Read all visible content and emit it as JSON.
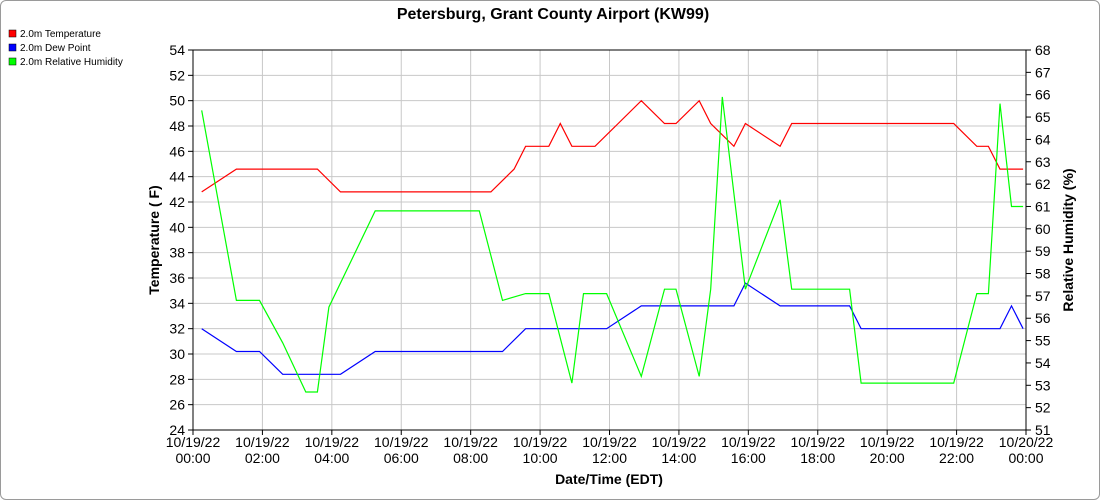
{
  "chart_data": {
    "type": "line",
    "title": "Petersburg, Grant County Airport (KW99)",
    "xlabel": "Date/Time (EDT)",
    "ylabel": "Temperature ( F)",
    "y2label": "Relative Humidity (%)",
    "x_ticks": [
      {
        "date": "10/19/22",
        "time": "00:00"
      },
      {
        "date": "10/19/22",
        "time": "02:00"
      },
      {
        "date": "10/19/22",
        "time": "04:00"
      },
      {
        "date": "10/19/22",
        "time": "06:00"
      },
      {
        "date": "10/19/22",
        "time": "08:00"
      },
      {
        "date": "10/19/22",
        "time": "10:00"
      },
      {
        "date": "10/19/22",
        "time": "12:00"
      },
      {
        "date": "10/19/22",
        "time": "14:00"
      },
      {
        "date": "10/19/22",
        "time": "16:00"
      },
      {
        "date": "10/19/22",
        "time": "18:00"
      },
      {
        "date": "10/19/22",
        "time": "20:00"
      },
      {
        "date": "10/19/22",
        "time": "22:00"
      },
      {
        "date": "10/20/22",
        "time": "00:00"
      }
    ],
    "xlim": [
      "10/19/22 00:00",
      "10/20/22 00:00"
    ],
    "ylim": [
      24,
      54
    ],
    "yticks": [
      24,
      26,
      28,
      30,
      32,
      34,
      36,
      38,
      40,
      42,
      44,
      46,
      48,
      50,
      52,
      54
    ],
    "y2lim": [
      51,
      68
    ],
    "y2ticks": [
      51,
      52,
      53,
      54,
      55,
      56,
      57,
      58,
      59,
      60,
      61,
      62,
      63,
      64,
      65,
      66,
      67,
      68
    ],
    "grid": true,
    "legend_position": "top-left",
    "series": [
      {
        "name": "2.0m Temperature",
        "color": "#ff0000",
        "axis": "left",
        "x": [
          "10/19/22 00:15",
          "10/19/22 01:15",
          "10/19/22 02:15",
          "10/19/22 03:15",
          "10/19/22 03:35",
          "10/19/22 04:15",
          "10/19/22 05:15",
          "10/19/22 06:15",
          "10/19/22 07:15",
          "10/19/22 08:15",
          "10/19/22 08:35",
          "10/19/22 09:15",
          "10/19/22 09:35",
          "10/19/22 10:15",
          "10/19/22 10:35",
          "10/19/22 10:55",
          "10/19/22 11:15",
          "10/19/22 11:35",
          "10/19/22 12:15",
          "10/19/22 12:55",
          "10/19/22 13:35",
          "10/19/22 13:55",
          "10/19/22 14:35",
          "10/19/22 14:55",
          "10/19/22 15:35",
          "10/19/22 15:55",
          "10/19/22 16:55",
          "10/19/22 17:15",
          "10/19/22 17:35",
          "10/19/22 18:15",
          "10/19/22 19:15",
          "10/19/22 20:15",
          "10/19/22 21:15",
          "10/19/22 21:55",
          "10/19/22 22:35",
          "10/19/22 22:55",
          "10/19/22 23:15",
          "10/19/22 23:35",
          "10/19/22 23:55"
        ],
        "y": [
          42.8,
          44.6,
          44.6,
          44.6,
          44.6,
          42.8,
          42.8,
          42.8,
          42.8,
          42.8,
          42.8,
          44.6,
          46.4,
          46.4,
          48.2,
          46.4,
          46.4,
          46.4,
          48.2,
          50.0,
          48.2,
          48.2,
          50.0,
          48.2,
          46.4,
          48.2,
          46.4,
          48.2,
          48.2,
          48.2,
          48.2,
          48.2,
          48.2,
          48.2,
          46.4,
          46.4,
          44.6,
          44.6,
          44.6
        ]
      },
      {
        "name": "2.0m Dew Point",
        "color": "#0000ff",
        "axis": "left",
        "x": [
          "10/19/22 00:15",
          "10/19/22 01:15",
          "10/19/22 01:55",
          "10/19/22 02:35",
          "10/19/22 03:15",
          "10/19/22 03:55",
          "10/19/22 04:15",
          "10/19/22 05:15",
          "10/19/22 06:15",
          "10/19/22 07:15",
          "10/19/22 08:15",
          "10/19/22 08:55",
          "10/19/22 09:35",
          "10/19/22 10:15",
          "10/19/22 11:15",
          "10/19/22 11:55",
          "10/19/22 12:55",
          "10/19/22 13:35",
          "10/19/22 14:15",
          "10/19/22 14:55",
          "10/19/22 15:35",
          "10/19/22 15:55",
          "10/19/22 16:55",
          "10/19/22 17:55",
          "10/19/22 18:55",
          "10/19/22 19:15",
          "10/19/22 20:15",
          "10/19/22 21:15",
          "10/19/22 22:15",
          "10/19/22 23:15",
          "10/19/22 23:35",
          "10/19/22 23:55"
        ],
        "y": [
          32.0,
          30.2,
          30.2,
          28.4,
          28.4,
          28.4,
          28.4,
          30.2,
          30.2,
          30.2,
          30.2,
          30.2,
          32.0,
          32.0,
          32.0,
          32.0,
          33.8,
          33.8,
          33.8,
          33.8,
          33.8,
          35.6,
          33.8,
          33.8,
          33.8,
          32.0,
          32.0,
          32.0,
          32.0,
          32.0,
          33.8,
          32.0
        ]
      },
      {
        "name": "2.0m Relative Humidity",
        "color": "#00ff00",
        "axis": "right",
        "x": [
          "10/19/22 00:15",
          "10/19/22 01:15",
          "10/19/22 01:55",
          "10/19/22 02:35",
          "10/19/22 03:15",
          "10/19/22 03:35",
          "10/19/22 03:55",
          "10/19/22 05:15",
          "10/19/22 06:15",
          "10/19/22 07:15",
          "10/19/22 08:15",
          "10/19/22 08:55",
          "10/19/22 09:35",
          "10/19/22 10:15",
          "10/19/22 10:55",
          "10/19/22 11:15",
          "10/19/22 11:55",
          "10/19/22 12:55",
          "10/19/22 13:35",
          "10/19/22 13:55",
          "10/19/22 14:35",
          "10/19/22 14:55",
          "10/19/22 15:15",
          "10/19/22 15:55",
          "10/19/22 16:55",
          "10/19/22 17:15",
          "10/19/22 18:15",
          "10/19/22 18:55",
          "10/19/22 19:15",
          "10/19/22 20:15",
          "10/19/22 21:15",
          "10/19/22 21:55",
          "10/19/22 22:35",
          "10/19/22 22:55",
          "10/19/22 23:15",
          "10/19/22 23:35",
          "10/19/22 23:55"
        ],
        "y": [
          65.3,
          56.8,
          56.8,
          54.9,
          52.7,
          52.7,
          56.5,
          60.8,
          60.8,
          60.8,
          60.8,
          56.8,
          57.1,
          57.1,
          53.1,
          57.1,
          57.1,
          53.4,
          57.3,
          57.3,
          53.4,
          57.3,
          65.9,
          57.3,
          61.3,
          57.3,
          57.3,
          57.3,
          53.1,
          53.1,
          53.1,
          53.1,
          57.1,
          57.1,
          65.6,
          61.0,
          61.0
        ]
      }
    ]
  }
}
